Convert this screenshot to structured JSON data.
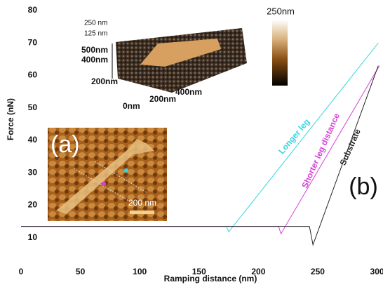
{
  "chart_data": {
    "type": "line",
    "xlabel": "Ramping distance (nm)",
    "ylabel": "Force (nN)",
    "xlim": [
      0,
      305
    ],
    "xticks": [
      0,
      50,
      100,
      150,
      200,
      250,
      300
    ],
    "ylim": [
      0,
      80
    ],
    "yticks": [
      10,
      20,
      30,
      40,
      50,
      60,
      70,
      80
    ],
    "series": [
      {
        "name": "Longer leg",
        "color": "#33d6e0",
        "x": [
          0,
          173,
          175,
          301
        ],
        "values": [
          13.5,
          13.5,
          11.8,
          70
        ]
      },
      {
        "name": "Shorter leg distance",
        "color": "#d93fd9",
        "x": [
          0,
          217,
          219,
          302
        ],
        "values": [
          13.5,
          13.5,
          11.2,
          63
        ]
      },
      {
        "name": "Substrate",
        "color": "#222222",
        "x": [
          0,
          243,
          246,
          301
        ],
        "values": [
          13.5,
          13.5,
          7.8,
          63
        ]
      }
    ],
    "panel_label": "(b)",
    "insets": {
      "afm_image": {
        "label": "(a)",
        "scale_bar": "200 nm"
      },
      "topography_3d": {
        "z_ticks": [
          "250 nm",
          "125 nm"
        ],
        "y_ticks": [
          "500nm",
          "400nm",
          "200nm"
        ],
        "x_ticks": [
          "0nm",
          "200nm",
          "400nm"
        ],
        "colorbar_label": "250nm"
      }
    }
  }
}
